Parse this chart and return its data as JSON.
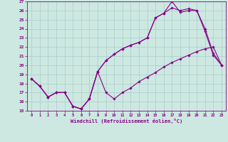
{
  "xlabel": "Windchill (Refroidissement éolien,°C)",
  "bg_color": "#cce8e0",
  "line_color": "#880088",
  "grid_color": "#aacccc",
  "xlim": [
    -0.5,
    23.5
  ],
  "ylim": [
    15,
    27
  ],
  "xticks": [
    0,
    1,
    2,
    3,
    4,
    5,
    6,
    7,
    8,
    9,
    10,
    11,
    12,
    13,
    14,
    15,
    16,
    17,
    18,
    19,
    20,
    21,
    22,
    23
  ],
  "yticks": [
    15,
    16,
    17,
    18,
    19,
    20,
    21,
    22,
    23,
    24,
    25,
    26,
    27
  ],
  "series1_x": [
    0,
    1,
    2,
    3,
    4,
    5,
    6,
    7,
    8,
    9,
    10,
    11,
    12,
    13,
    14,
    15,
    16,
    17,
    18,
    19,
    20,
    21,
    22,
    23
  ],
  "series1_y": [
    18.5,
    17.7,
    16.5,
    17.0,
    17.0,
    15.5,
    15.2,
    16.3,
    19.3,
    17.0,
    16.3,
    17.0,
    17.5,
    18.2,
    18.7,
    19.2,
    19.8,
    20.3,
    20.7,
    21.1,
    21.5,
    21.8,
    22.0,
    20.0
  ],
  "series2_x": [
    0,
    1,
    2,
    3,
    4,
    5,
    6,
    7,
    8,
    9,
    10,
    11,
    12,
    13,
    14,
    15,
    16,
    17,
    18,
    19,
    20,
    21,
    22,
    23
  ],
  "series2_y": [
    18.5,
    17.7,
    16.5,
    17.0,
    17.0,
    15.5,
    15.2,
    16.3,
    19.3,
    20.5,
    21.2,
    21.8,
    22.2,
    22.5,
    23.0,
    25.2,
    25.7,
    26.3,
    26.0,
    26.2,
    26.0,
    23.7,
    21.1,
    20.0
  ],
  "series3_x": [
    0,
    1,
    2,
    3,
    4,
    5,
    6,
    7,
    8,
    9,
    10,
    11,
    12,
    13,
    14,
    15,
    16,
    17,
    18,
    19,
    20,
    21,
    22,
    23
  ],
  "series3_y": [
    18.5,
    17.7,
    16.5,
    17.0,
    17.0,
    15.5,
    15.2,
    16.3,
    19.3,
    20.5,
    21.2,
    21.8,
    22.2,
    22.5,
    23.0,
    25.2,
    25.7,
    27.0,
    25.8,
    26.0,
    26.0,
    24.0,
    21.3,
    20.0
  ]
}
